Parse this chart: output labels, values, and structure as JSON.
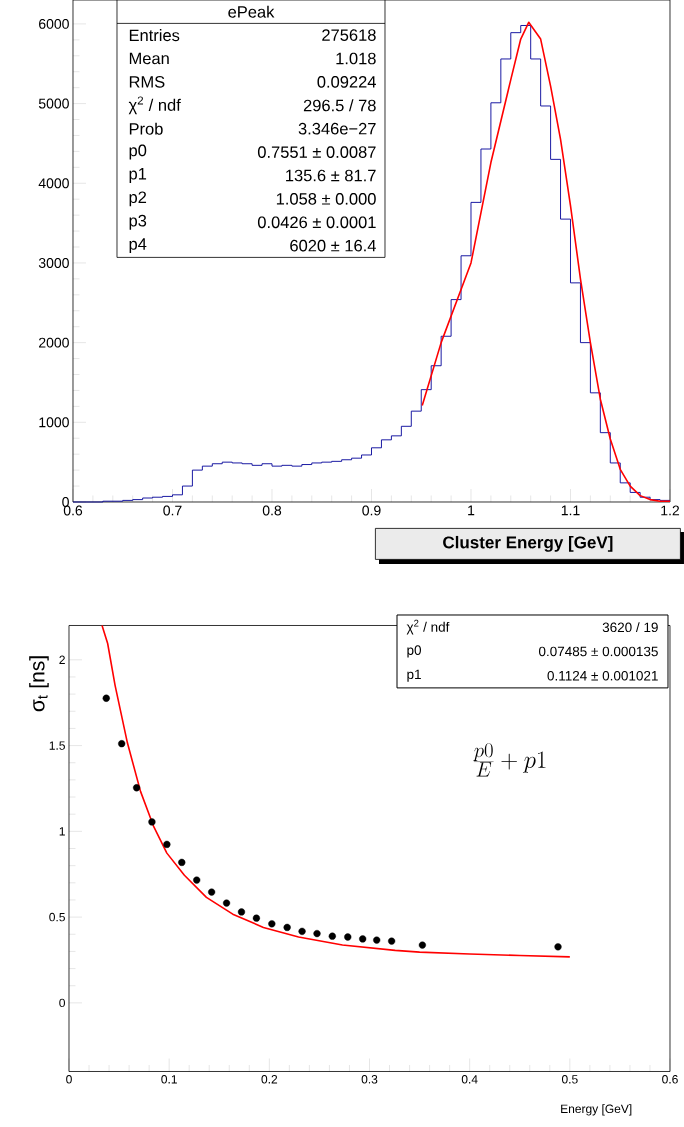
{
  "chart_data": [
    {
      "type": "histogram",
      "xlabel": "Cluster Energy [GeV]",
      "xlim": [
        0.6,
        1.2
      ],
      "ylim": [
        0,
        6300
      ],
      "xticks": [
        0.6,
        0.7,
        0.8,
        0.9,
        1,
        1.1,
        1.2
      ],
      "yticks": [
        0,
        1000,
        2000,
        3000,
        4000,
        5000,
        6000
      ],
      "bins": [
        0.6,
        0.61,
        0.62,
        0.63,
        0.64,
        0.65,
        0.66,
        0.67,
        0.68,
        0.69,
        0.7,
        0.71,
        0.72,
        0.73,
        0.74,
        0.75,
        0.76,
        0.77,
        0.78,
        0.79,
        0.8,
        0.81,
        0.82,
        0.83,
        0.84,
        0.85,
        0.86,
        0.87,
        0.88,
        0.89,
        0.9,
        0.91,
        0.92,
        0.93,
        0.94,
        0.95,
        0.96,
        0.97,
        0.98,
        0.99,
        1.0,
        1.01,
        1.02,
        1.03,
        1.04,
        1.05,
        1.06,
        1.07,
        1.08,
        1.09,
        1.1,
        1.11,
        1.12,
        1.13,
        1.14,
        1.15,
        1.16,
        1.17,
        1.18,
        1.19,
        1.2
      ],
      "series": [
        {
          "color": "#000099",
          "values": [
            0,
            0,
            0,
            10,
            10,
            20,
            30,
            50,
            60,
            70,
            90,
            200,
            400,
            450,
            480,
            500,
            490,
            480,
            460,
            480,
            450,
            460,
            450,
            470,
            490,
            500,
            510,
            530,
            550,
            590,
            680,
            780,
            830,
            950,
            1140,
            1410,
            1710,
            2080,
            2540,
            3090,
            3760,
            4430,
            5010,
            5560,
            5890,
            5980,
            5560,
            4970,
            4300,
            3550,
            2750,
            2000,
            1370,
            870,
            490,
            240,
            120,
            60,
            30,
            20
          ]
        },
        {
          "type": "line",
          "color": "#ff0000",
          "x": [
            0.951,
            0.97,
            1.0,
            1.02,
            1.04,
            1.05,
            1.058,
            1.07,
            1.08,
            1.09,
            1.1,
            1.11,
            1.12,
            1.13,
            1.14,
            1.15,
            1.16,
            1.17,
            1.18,
            1.19,
            1.2
          ],
          "values": [
            1210,
            2000,
            3000,
            4260,
            5300,
            5810,
            6020,
            5810,
            5220,
            4550,
            3720,
            2800,
            2000,
            1290,
            790,
            410,
            200,
            80,
            30,
            10,
            10
          ]
        }
      ],
      "annotations": [
        "ePeak",
        "Entries",
        "275618",
        "Mean",
        "1.018",
        "RMS",
        "0.09224",
        "χ$^{2}$ / ndf",
        "296.5 / 78",
        "Prob",
        "3.346e−27",
        "p0",
        "0.7551 ± 0.0087",
        "p1",
        "135.6 ± 81.7",
        "p2",
        "1.058 ± 0.000",
        "p3",
        "0.0426 ± 0.0001",
        "p4",
        "6020 ± 16.4"
      ]
    },
    {
      "type": "scatter",
      "xlabel": "Energy [GeV]",
      "ylabel": "σ$_{t}$ [ns]",
      "xlim": [
        0,
        0.6
      ],
      "ylim": [
        -0.4,
        2.2
      ],
      "xticks": [
        0,
        0.1,
        0.2,
        0.3,
        0.4,
        0.5,
        0.6
      ],
      "yticks": [
        0,
        0.5,
        1,
        1.5,
        2
      ],
      "series": [
        {
          "marker": "circle",
          "color": "#000000",
          "x": [
            0.0372,
            0.0526,
            0.0675,
            0.0828,
            0.0977,
            0.1126,
            0.1275,
            0.1424,
            0.1573,
            0.1722,
            0.1871,
            0.2025,
            0.2178,
            0.2327,
            0.2476,
            0.2629,
            0.2783,
            0.2932,
            0.3072,
            0.3221,
            0.3528,
            0.4882
          ],
          "values": [
            1.776,
            1.511,
            1.254,
            1.055,
            0.924,
            0.819,
            0.716,
            0.646,
            0.582,
            0.53,
            0.494,
            0.461,
            0.44,
            0.417,
            0.404,
            0.389,
            0.384,
            0.373,
            0.366,
            0.36,
            0.337,
            0.327
          ]
        },
        {
          "type": "line",
          "color": "#ff0000",
          "x": [
            0.033,
            0.0386,
            0.046,
            0.0583,
            0.0714,
            0.0846,
            0.0977,
            0.1152,
            0.1372,
            0.1635,
            0.1941,
            0.2292,
            0.273,
            0.3256,
            0.35,
            0.4,
            0.45,
            0.5
          ],
          "values": [
            2.2,
            2.095,
            1.851,
            1.516,
            1.233,
            1.027,
            0.873,
            0.744,
            0.615,
            0.517,
            0.44,
            0.384,
            0.337,
            0.306,
            0.296,
            0.285,
            0.276,
            0.268
          ]
        }
      ],
      "annotations": [
        "χ$^{2}$ / ndf",
        "3620 / 19",
        "p0",
        "0.07485 ± 0.000135",
        "p1",
        "0.1124 ± 0.001021",
        "\\frac{p0}{E}+p1"
      ]
    }
  ]
}
